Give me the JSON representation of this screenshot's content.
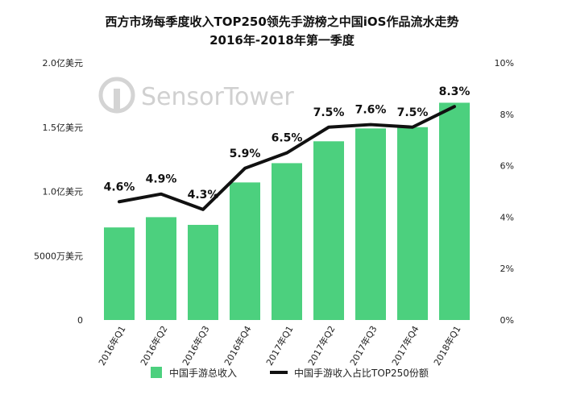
{
  "title_line1": "西方市场每季度收入TOP250领先手游榜之中国iOS作品流水走势",
  "title_line2": "2016年-2018年第一季度",
  "watermark": "SensorTower",
  "colors": {
    "bar": "#4cd07e",
    "line": "#111111",
    "axis_text": "#222222",
    "watermark": "#d0d0d0"
  },
  "chart_data": {
    "type": "bar",
    "categories": [
      "2016年Q1",
      "2016年Q2",
      "2016年Q3",
      "2016年Q4",
      "2017年Q1",
      "2017年Q2",
      "2017年Q3",
      "2017年Q4",
      "2018年Q1"
    ],
    "series": [
      {
        "name": "中国手游总收入",
        "type": "bar",
        "axis": "left",
        "values": [
          72000000,
          80000000,
          74000000,
          107000000,
          122000000,
          139000000,
          149000000,
          150000000,
          169000000
        ]
      },
      {
        "name": "中国手游收入占比TOP250份额",
        "type": "line",
        "axis": "right",
        "values": [
          4.6,
          4.9,
          4.3,
          5.9,
          6.5,
          7.5,
          7.6,
          7.5,
          8.3
        ],
        "labels": [
          "4.6%",
          "4.9%",
          "4.3%",
          "5.9%",
          "6.5%",
          "7.5%",
          "7.6%",
          "7.5%",
          "8.3%"
        ]
      }
    ],
    "y_left": {
      "ylim": [
        0,
        200000000
      ],
      "ticks": [
        0,
        50000000,
        100000000,
        150000000,
        200000000
      ],
      "tick_labels": [
        "0",
        "5000万美元",
        "1.0亿美元",
        "1.5亿美元",
        "2.0亿美元"
      ]
    },
    "y_right": {
      "ylim": [
        0,
        10
      ],
      "ticks": [
        0,
        2,
        4,
        6,
        8,
        10
      ],
      "tick_labels": [
        "0%",
        "2%",
        "4%",
        "6%",
        "8%",
        "10%"
      ]
    },
    "legend_position": "bottom",
    "grid": false
  }
}
